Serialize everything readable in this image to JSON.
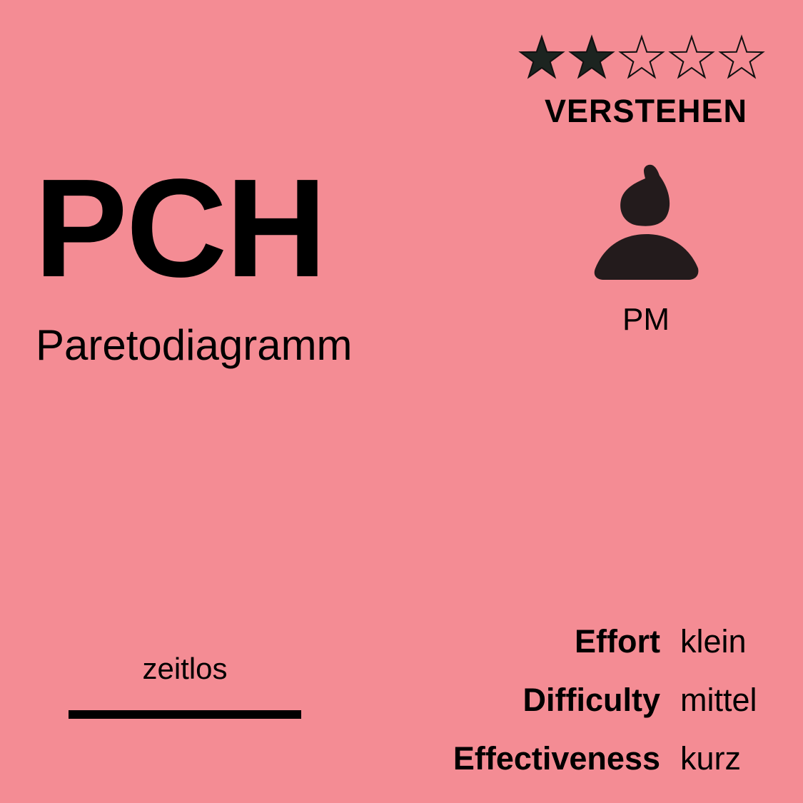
{
  "rating": {
    "filled": 2,
    "total": 5,
    "label": "VERSTEHEN"
  },
  "title": {
    "code": "PCH",
    "name": "Paretodiagramm"
  },
  "role": {
    "icon": "person-icon",
    "label": "PM"
  },
  "timeline": {
    "label": "zeitlos"
  },
  "metrics": [
    {
      "label": "Effort",
      "value": "klein"
    },
    {
      "label": "Difficulty",
      "value": "mittel"
    },
    {
      "label": "Effectiveness",
      "value": "kurz"
    }
  ],
  "colors": {
    "background": "#f48c94",
    "star_filled": "#1c2420",
    "text": "#000000"
  }
}
